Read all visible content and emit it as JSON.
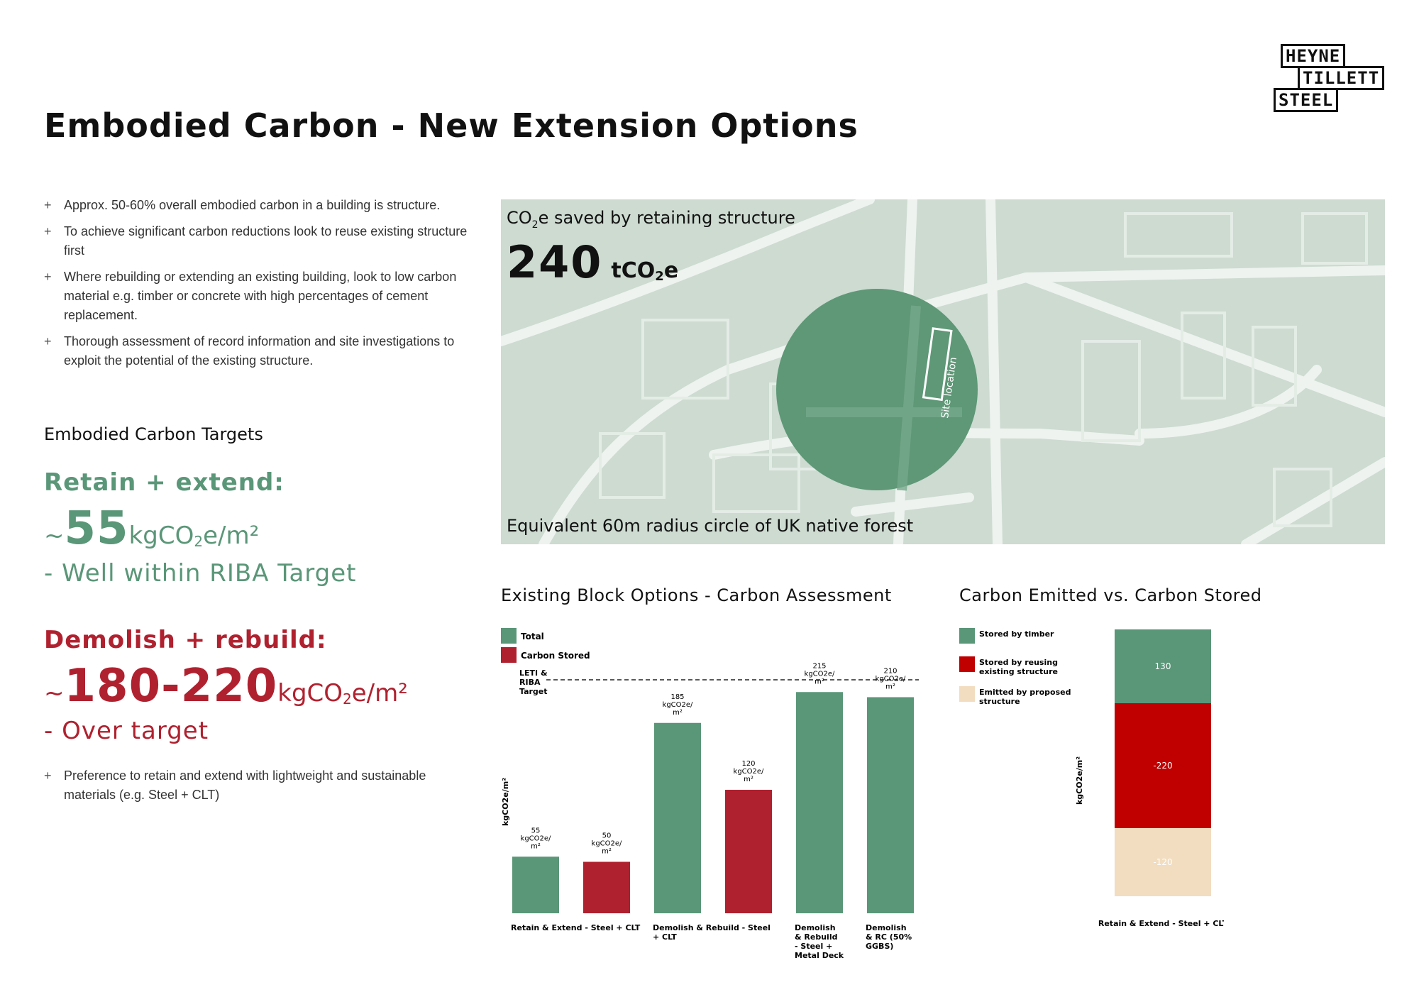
{
  "logo": {
    "line1": "HEYNE",
    "line2": "TILLETT",
    "line3": "STEEL"
  },
  "title": "Embodied Carbon - New Extension Options",
  "bullets": [
    "Approx. 50-60% overall embodied carbon in a building is structure.",
    "To achieve significant carbon reductions look to reuse existing structure first",
    "Where rebuilding or extending an existing building, look to low carbon material e.g. timber or concrete with high percentages of cement replacement.",
    "Thorough assessment of record information and site investigations to exploit the potential of the existing structure."
  ],
  "targets": {
    "heading": "Embodied Carbon Targets",
    "retain": {
      "label": "Retain + extend:",
      "prefix": "~",
      "value": "55",
      "unit": "kgCO",
      "unit_sub": "2",
      "unit_end": "e/m²",
      "note": "- Well within RIBA Target"
    },
    "demolish": {
      "label": "Demolish + rebuild:",
      "prefix": "~",
      "value": "180-220",
      "unit": "kgCO",
      "unit_sub": "2",
      "unit_end": "e/m²",
      "note": "- Over target"
    }
  },
  "preference": "Preference to retain and extend with lightweight and sustainable materials (e.g. Steel + CLT)",
  "map": {
    "caption_pre": "CO",
    "caption_sub": "2",
    "caption_post": "e saved by retaining structure",
    "value": "240",
    "unit_pre": "tCO",
    "unit_sub": "2",
    "unit_post": "e",
    "footer": "Equivalent 60m radius circle of UK native forest",
    "site_label": "Site location"
  },
  "colors": {
    "green": "#5a9678",
    "red": "#b0212f",
    "beige": "#f2ddc0",
    "deep_red": "#c00000",
    "map_bg": "#cddbd1"
  },
  "chart_data": [
    {
      "type": "bar",
      "title": "Existing Block Options - Carbon Assessment",
      "ylabel": "kgCO2e/m²",
      "legend": [
        "Total",
        "Carbon Stored"
      ],
      "target_label": "LETI & RIBA Target",
      "bars": [
        {
          "category": "Retain & Extend - Steel + CLT",
          "cat_lines": [
            "Retain & Extend - Steel + CLT"
          ],
          "group": 0,
          "value": 55,
          "label_lines": [
            "55",
            "kgCO2e/",
            "m²"
          ],
          "color": "green"
        },
        {
          "category": "",
          "cat_lines": [],
          "group": 0,
          "value": 50,
          "label_lines": [
            "50",
            "kgCO2e/",
            "m²"
          ],
          "color": "red"
        },
        {
          "category": "Demolish & Rebuild - Steel + CLT",
          "cat_lines": [
            "Demolish & Rebuild - Steel",
            "+ CLT"
          ],
          "group": 1,
          "value": 185,
          "label_lines": [
            "185",
            "kgCO2e/",
            "m²"
          ],
          "color": "green"
        },
        {
          "category": "",
          "cat_lines": [],
          "group": 1,
          "value": 120,
          "label_lines": [
            "120",
            "kgCO2e/",
            "m²"
          ],
          "color": "red"
        },
        {
          "category": "Demolish & Rebuild - Steel + Metal Deck",
          "cat_lines": [
            "Demolish",
            "& Rebuild",
            "- Steel +",
            "Metal Deck"
          ],
          "group": 2,
          "value": 215,
          "label_lines": [
            "215",
            "kgCO2e/",
            "m²"
          ],
          "color": "green"
        },
        {
          "category": "Demolish & RC (50% GGBS)",
          "cat_lines": [
            "Demolish",
            "& RC (50%",
            "GGBS)"
          ],
          "group": 3,
          "value": 210,
          "label_lines": [
            "210",
            "kgCO2e/",
            "m²"
          ],
          "color": "green"
        }
      ]
    },
    {
      "type": "bar",
      "stacked": true,
      "title": "Carbon Emitted vs. Carbon Stored",
      "ylabel": "kgCO2e/m²",
      "categories": [
        "Retain & Extend - Steel + CLT"
      ],
      "series": [
        {
          "name": "Stored by timber",
          "values": [
            130
          ],
          "color": "green"
        },
        {
          "name": "Stored by reusing existing structure",
          "values": [
            -220
          ],
          "color": "deep_red"
        },
        {
          "name": "Emitted by proposed structure",
          "values": [
            -120
          ],
          "color": "beige"
        }
      ],
      "legend_lines": [
        [
          "Stored by timber"
        ],
        [
          "Stored by reusing",
          "existing structure"
        ],
        [
          "Emitted by proposed",
          "structure"
        ]
      ]
    }
  ]
}
